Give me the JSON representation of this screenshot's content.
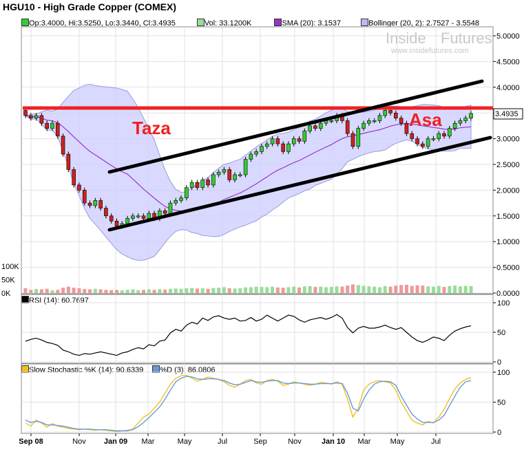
{
  "title": "HGU10 - High Grade Copper (COMEX)",
  "watermark": {
    "brand_a": "Inside",
    "brand_b": "Futures",
    "url": "www.insidefutures.com"
  },
  "legend": {
    "ohlc": "Op:3.4000, Hi:3.5250, Lo:3.3440, Cl:3.4935",
    "vol": "Vol: 33.1200K",
    "sma": "SMA (20): 3.1537",
    "boll": "Bollinger (20, 2): 2.7527 - 3.5548",
    "rsi": "RSI (14): 60.7697",
    "stoch_k": "Slow Stochastic %K (14): 90.6339",
    "stoch_d": "%D (3): 86.0806"
  },
  "annotations": {
    "left": "Taza",
    "right": "Asa",
    "last_price": "3.4935"
  },
  "colors": {
    "up": "#33cc33",
    "down": "#cc2222",
    "sma": "#9933cc",
    "band": "#ccccff",
    "band_edge": "#9999dd",
    "trend": "#000000",
    "resistance": "#ee2222",
    "stoch_k": "#f0c020",
    "stoch_d": "#6699dd",
    "vol_up": "#99dd99",
    "vol_down": "#ee9999",
    "annot": "#ee2222"
  },
  "x_labels": [
    "Sep 08",
    "Nov",
    "Jan 09",
    "Mar",
    "May",
    "Jul",
    "Sep",
    "Nov",
    "Jan 10",
    "Mar",
    "May",
    "Jul"
  ],
  "bold_x_labels": [
    "Sep 08",
    "Jan 09",
    "Jan 10"
  ],
  "chart_data": [
    {
      "type": "candlestick",
      "panel": "price",
      "ylim": [
        0,
        5.25
      ],
      "y_ticks": [
        "5.0000",
        "4.5000",
        "4.0000",
        "3.5000",
        "3.0000",
        "2.5000",
        "2.0000",
        "1.5000",
        "1.0000",
        "0.5000",
        "0.0000"
      ],
      "x_start": "2008-08-21",
      "interval_days": 7,
      "close": [
        3.45,
        3.4,
        3.45,
        3.3,
        3.2,
        3.3,
        3.05,
        2.7,
        2.4,
        2.1,
        2.0,
        1.75,
        1.7,
        1.8,
        1.65,
        1.5,
        1.4,
        1.3,
        1.35,
        1.45,
        1.5,
        1.5,
        1.45,
        1.55,
        1.45,
        1.6,
        1.55,
        1.75,
        1.8,
        1.85,
        2.05,
        2.15,
        2.05,
        2.2,
        2.1,
        2.3,
        2.35,
        2.4,
        2.2,
        2.3,
        2.3,
        2.6,
        2.7,
        2.75,
        2.85,
        2.9,
        3.0,
        2.9,
        2.75,
        2.9,
        3.0,
        2.95,
        3.15,
        3.25,
        3.2,
        3.3,
        3.35,
        3.35,
        3.45,
        3.35,
        3.1,
        2.85,
        3.2,
        3.3,
        3.35,
        3.35,
        3.45,
        3.55,
        3.5,
        3.4,
        3.3,
        3.1,
        3.0,
        2.9,
        2.85,
        3.0,
        3.0,
        3.1,
        3.05,
        3.2,
        3.3,
        3.35,
        3.4,
        3.49
      ],
      "volume_ylim": [
        0,
        120
      ],
      "volume_ticks": [
        "100K",
        "50K",
        "0K"
      ],
      "volume": [
        18,
        12,
        15,
        14,
        16,
        10,
        12,
        20,
        24,
        20,
        18,
        15,
        14,
        16,
        14,
        12,
        11,
        12,
        10,
        12,
        14,
        11,
        12,
        14,
        12,
        15,
        13,
        16,
        17,
        16,
        18,
        19,
        17,
        18,
        16,
        19,
        20,
        22,
        18,
        17,
        18,
        21,
        22,
        24,
        23,
        22,
        24,
        21,
        20,
        22,
        24,
        21,
        25,
        26,
        23,
        24,
        22,
        23,
        25,
        24,
        28,
        32,
        30,
        27,
        25,
        24,
        22,
        26,
        24,
        28,
        30,
        31,
        27,
        29,
        28,
        25,
        24,
        27,
        23,
        26,
        28,
        25,
        27,
        26
      ]
    },
    {
      "type": "line",
      "panel": "rsi",
      "ylim": [
        0,
        100
      ],
      "y_ticks": [
        "100",
        "50",
        "0"
      ],
      "series": [
        {
          "name": "RSI (14)",
          "values": [
            35,
            38,
            40,
            37,
            33,
            31,
            28,
            20,
            17,
            13,
            11,
            14,
            13,
            15,
            17,
            15,
            13,
            11,
            15,
            17,
            21,
            24,
            22,
            29,
            27,
            35,
            37,
            49,
            55,
            52,
            62,
            67,
            64,
            74,
            70,
            76,
            78,
            74,
            72,
            74,
            69,
            70,
            75,
            69,
            72,
            79,
            74,
            69,
            74,
            79,
            77,
            71,
            67,
            71,
            73,
            75,
            72,
            75,
            80,
            74,
            58,
            49,
            57,
            60,
            57,
            57,
            59,
            62,
            58,
            55,
            58,
            50,
            42,
            36,
            33,
            37,
            42,
            40,
            36,
            45,
            52,
            56,
            59,
            61
          ]
        }
      ]
    },
    {
      "type": "line",
      "panel": "stochastic",
      "ylim": [
        0,
        100
      ],
      "y_ticks": [
        "100",
        "50",
        "0"
      ],
      "series": [
        {
          "name": "Slow Stochastic %K (14)",
          "values": [
            15,
            10,
            20,
            15,
            8,
            14,
            10,
            8,
            6,
            5,
            4,
            5,
            4,
            3,
            4,
            3,
            2,
            1,
            2,
            3,
            5,
            15,
            25,
            30,
            40,
            50,
            65,
            80,
            90,
            94,
            95,
            90,
            85,
            88,
            92,
            90,
            88,
            84,
            78,
            75,
            80,
            86,
            88,
            82,
            80,
            86,
            88,
            85,
            78,
            80,
            84,
            82,
            80,
            78,
            80,
            83,
            82,
            80,
            84,
            80,
            55,
            25,
            40,
            70,
            80,
            84,
            86,
            84,
            82,
            70,
            50,
            35,
            20,
            15,
            12,
            18,
            15,
            25,
            38,
            56,
            72,
            82,
            88,
            91
          ]
        },
        {
          "name": "%D (3)",
          "values": [
            20,
            16,
            18,
            16,
            12,
            12,
            11,
            10,
            8,
            6,
            5,
            5,
            5,
            4,
            4,
            4,
            3,
            2,
            2,
            2,
            4,
            9,
            16,
            24,
            33,
            42,
            55,
            70,
            84,
            90,
            93,
            92,
            89,
            88,
            89,
            89,
            88,
            86,
            82,
            79,
            80,
            83,
            86,
            84,
            83,
            85,
            86,
            86,
            82,
            81,
            82,
            82,
            81,
            80,
            80,
            81,
            81,
            81,
            82,
            81,
            65,
            40,
            35,
            55,
            70,
            80,
            84,
            85,
            84,
            78,
            60,
            45,
            30,
            22,
            16,
            16,
            16,
            20,
            28,
            44,
            60,
            75,
            84,
            86
          ]
        }
      ]
    }
  ]
}
